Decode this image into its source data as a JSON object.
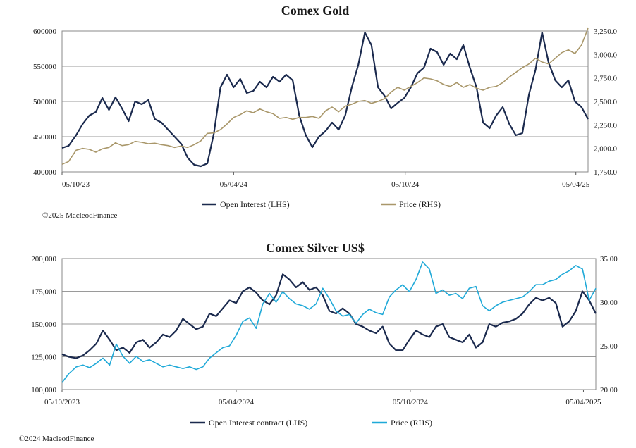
{
  "chart_data": [
    {
      "type": "line",
      "title": "Comex Gold",
      "credit": "©2025 MacleodFinance",
      "x_ticks": [
        "05/10/23",
        "05/04/24",
        "05/10/24",
        "05/04/25"
      ],
      "left_axis": {
        "ylim": [
          400000,
          600000
        ],
        "ticks": [
          "400000",
          "450000",
          "500000",
          "550000",
          "600000"
        ]
      },
      "right_axis": {
        "ylim": [
          1750,
          3250
        ],
        "ticks": [
          "1,750.0",
          "2,000.0",
          "2,250.0",
          "2,500.0",
          "2,750.0",
          "3,000.0",
          "3,250.0"
        ]
      },
      "grid": true,
      "legend_position": "bottom",
      "series": [
        {
          "name": "Open Interest (LHS)",
          "axis": "left",
          "color": "#1b2a4e",
          "x": [
            "2023-10-05",
            "2023-10-12",
            "2023-10-20",
            "2023-10-27",
            "2023-11-03",
            "2023-11-10",
            "2023-11-17",
            "2023-11-24",
            "2023-12-01",
            "2023-12-08",
            "2023-12-15",
            "2023-12-22",
            "2023-12-29",
            "2024-01-05",
            "2024-01-12",
            "2024-01-19",
            "2024-01-26",
            "2024-02-02",
            "2024-02-09",
            "2024-02-16",
            "2024-02-23",
            "2024-03-01",
            "2024-03-08",
            "2024-03-15",
            "2024-03-22",
            "2024-03-29",
            "2024-04-05",
            "2024-04-12",
            "2024-04-19",
            "2024-04-26",
            "2024-05-03",
            "2024-05-10",
            "2024-05-17",
            "2024-05-24",
            "2024-05-31",
            "2024-06-07",
            "2024-06-14",
            "2024-06-21",
            "2024-06-28",
            "2024-07-05",
            "2024-07-12",
            "2024-07-19",
            "2024-07-26",
            "2024-08-02",
            "2024-08-09",
            "2024-08-16",
            "2024-08-23",
            "2024-08-30",
            "2024-09-06",
            "2024-09-13",
            "2024-09-20",
            "2024-09-27",
            "2024-10-04",
            "2024-10-11",
            "2024-10-18",
            "2024-10-25",
            "2024-11-01",
            "2024-11-08",
            "2024-11-15",
            "2024-11-22",
            "2024-11-29",
            "2024-12-06",
            "2024-12-13",
            "2024-12-20",
            "2024-12-27",
            "2025-01-03",
            "2025-01-10",
            "2025-01-17",
            "2025-01-24",
            "2025-01-31",
            "2025-02-07",
            "2025-02-14",
            "2025-02-21",
            "2025-02-28",
            "2025-03-07",
            "2025-03-14",
            "2025-03-21",
            "2025-03-28",
            "2025-04-04",
            "2025-04-11",
            "2025-04-18"
          ],
          "values": [
            434000,
            437000,
            452000,
            468000,
            480000,
            485000,
            505000,
            488000,
            506000,
            490000,
            472000,
            500000,
            496000,
            502000,
            475000,
            470000,
            460000,
            450000,
            440000,
            420000,
            410000,
            408000,
            412000,
            455000,
            520000,
            538000,
            520000,
            532000,
            512000,
            515000,
            528000,
            520000,
            535000,
            528000,
            538000,
            530000,
            480000,
            452000,
            435000,
            450000,
            458000,
            470000,
            460000,
            480000,
            520000,
            552000,
            598000,
            580000,
            520000,
            508000,
            490000,
            498000,
            505000,
            520000,
            540000,
            548000,
            575000,
            570000,
            552000,
            568000,
            560000,
            580000,
            548000,
            520000,
            470000,
            462000,
            480000,
            492000,
            468000,
            452000,
            455000,
            510000,
            545000,
            598000,
            555000,
            530000,
            520000,
            530000,
            500000,
            492000,
            475000
          ]
        },
        {
          "name": "Price (RHS)",
          "axis": "right",
          "color": "#a9976a",
          "x": [
            "2023-10-05",
            "2023-10-12",
            "2023-10-20",
            "2023-10-27",
            "2023-11-03",
            "2023-11-10",
            "2023-11-17",
            "2023-11-24",
            "2023-12-01",
            "2023-12-08",
            "2023-12-15",
            "2023-12-22",
            "2023-12-29",
            "2024-01-05",
            "2024-01-12",
            "2024-01-19",
            "2024-01-26",
            "2024-02-02",
            "2024-02-09",
            "2024-02-16",
            "2024-02-23",
            "2024-03-01",
            "2024-03-08",
            "2024-03-15",
            "2024-03-22",
            "2024-03-29",
            "2024-04-05",
            "2024-04-12",
            "2024-04-19",
            "2024-04-26",
            "2024-05-03",
            "2024-05-10",
            "2024-05-17",
            "2024-05-24",
            "2024-05-31",
            "2024-06-07",
            "2024-06-14",
            "2024-06-21",
            "2024-06-28",
            "2024-07-05",
            "2024-07-12",
            "2024-07-19",
            "2024-07-26",
            "2024-08-02",
            "2024-08-09",
            "2024-08-16",
            "2024-08-23",
            "2024-08-30",
            "2024-09-06",
            "2024-09-13",
            "2024-09-20",
            "2024-09-27",
            "2024-10-04",
            "2024-10-11",
            "2024-10-18",
            "2024-10-25",
            "2024-11-01",
            "2024-11-08",
            "2024-11-15",
            "2024-11-22",
            "2024-11-29",
            "2024-12-06",
            "2024-12-13",
            "2024-12-20",
            "2024-12-27",
            "2025-01-03",
            "2025-01-10",
            "2025-01-17",
            "2025-01-24",
            "2025-01-31",
            "2025-02-07",
            "2025-02-14",
            "2025-02-21",
            "2025-02-28",
            "2025-03-07",
            "2025-03-14",
            "2025-03-21",
            "2025-03-28",
            "2025-04-04",
            "2025-04-11",
            "2025-04-18"
          ],
          "values": [
            1830,
            1860,
            1980,
            2000,
            1990,
            1960,
            1995,
            2010,
            2060,
            2030,
            2040,
            2075,
            2065,
            2050,
            2055,
            2040,
            2030,
            2010,
            2025,
            2010,
            2040,
            2080,
            2160,
            2165,
            2200,
            2260,
            2330,
            2360,
            2400,
            2380,
            2420,
            2390,
            2370,
            2320,
            2330,
            2310,
            2330,
            2330,
            2340,
            2320,
            2400,
            2440,
            2390,
            2450,
            2470,
            2500,
            2510,
            2480,
            2500,
            2530,
            2600,
            2650,
            2620,
            2660,
            2700,
            2750,
            2740,
            2720,
            2680,
            2660,
            2700,
            2650,
            2680,
            2640,
            2620,
            2650,
            2660,
            2700,
            2760,
            2810,
            2860,
            2900,
            2960,
            2920,
            2900,
            2960,
            3020,
            3050,
            3010,
            3100,
            3280
          ]
        }
      ]
    },
    {
      "type": "line",
      "title": "Comex Silver US$",
      "credit": "©2024 MacleodFinance",
      "x_ticks": [
        "05/10/2023",
        "05/04/2024",
        "05/10/2024",
        "05/04/2025"
      ],
      "left_axis": {
        "ylim": [
          100000,
          200000
        ],
        "ticks": [
          "100,000",
          "125,000",
          "150,000",
          "175,000",
          "200,000"
        ]
      },
      "right_axis": {
        "ylim": [
          20,
          35
        ],
        "ticks": [
          "20.00",
          "25.00",
          "30.00",
          "35.00"
        ]
      },
      "grid": true,
      "legend_position": "bottom",
      "series": [
        {
          "name": "Open Interest contract (LHS)",
          "axis": "left",
          "color": "#1b2a4e",
          "x": [
            "2023-10-05",
            "2023-10-12",
            "2023-10-20",
            "2023-10-27",
            "2023-11-03",
            "2023-11-10",
            "2023-11-17",
            "2023-11-24",
            "2023-12-01",
            "2023-12-08",
            "2023-12-15",
            "2023-12-22",
            "2023-12-29",
            "2024-01-05",
            "2024-01-12",
            "2024-01-19",
            "2024-01-26",
            "2024-02-02",
            "2024-02-09",
            "2024-02-16",
            "2024-02-23",
            "2024-03-01",
            "2024-03-08",
            "2024-03-15",
            "2024-03-22",
            "2024-03-29",
            "2024-04-05",
            "2024-04-12",
            "2024-04-19",
            "2024-04-26",
            "2024-05-03",
            "2024-05-10",
            "2024-05-17",
            "2024-05-24",
            "2024-05-31",
            "2024-06-07",
            "2024-06-14",
            "2024-06-21",
            "2024-06-28",
            "2024-07-05",
            "2024-07-12",
            "2024-07-19",
            "2024-07-26",
            "2024-08-02",
            "2024-08-09",
            "2024-08-16",
            "2024-08-23",
            "2024-08-30",
            "2024-09-06",
            "2024-09-13",
            "2024-09-20",
            "2024-09-27",
            "2024-10-04",
            "2024-10-11",
            "2024-10-18",
            "2024-10-25",
            "2024-11-01",
            "2024-11-08",
            "2024-11-15",
            "2024-11-22",
            "2024-11-29",
            "2024-12-06",
            "2024-12-13",
            "2024-12-20",
            "2024-12-27",
            "2025-01-03",
            "2025-01-10",
            "2025-01-17",
            "2025-01-24",
            "2025-01-31",
            "2025-02-07",
            "2025-02-14",
            "2025-02-21",
            "2025-02-28",
            "2025-03-07",
            "2025-03-14",
            "2025-03-21",
            "2025-03-28",
            "2025-04-04",
            "2025-04-11",
            "2025-04-18"
          ],
          "values": [
            127000,
            125000,
            124000,
            126000,
            130000,
            135000,
            145000,
            138000,
            130000,
            132000,
            128000,
            136000,
            138000,
            132000,
            136000,
            142000,
            140000,
            145000,
            154000,
            150000,
            146000,
            148000,
            158000,
            156000,
            162000,
            168000,
            166000,
            175000,
            178000,
            174000,
            168000,
            165000,
            172000,
            188000,
            184000,
            178000,
            182000,
            176000,
            178000,
            172000,
            160000,
            158000,
            162000,
            158000,
            150000,
            148000,
            145000,
            143000,
            148000,
            135000,
            130000,
            130000,
            138000,
            145000,
            142000,
            140000,
            148000,
            150000,
            140000,
            138000,
            136000,
            142000,
            132000,
            136000,
            150000,
            148000,
            151000,
            152000,
            154000,
            158000,
            165000,
            170000,
            168000,
            170000,
            166000,
            148000,
            152000,
            160000,
            175000,
            168000,
            158000
          ]
        },
        {
          "name": "Price (RHS)",
          "axis": "right",
          "color": "#1fa9d8",
          "x": [
            "2023-10-05",
            "2023-10-12",
            "2023-10-20",
            "2023-10-27",
            "2023-11-03",
            "2023-11-10",
            "2023-11-17",
            "2023-11-24",
            "2023-12-01",
            "2023-12-08",
            "2023-12-15",
            "2023-12-22",
            "2023-12-29",
            "2024-01-05",
            "2024-01-12",
            "2024-01-19",
            "2024-01-26",
            "2024-02-02",
            "2024-02-09",
            "2024-02-16",
            "2024-02-23",
            "2024-03-01",
            "2024-03-08",
            "2024-03-15",
            "2024-03-22",
            "2024-03-29",
            "2024-04-05",
            "2024-04-12",
            "2024-04-19",
            "2024-04-26",
            "2024-05-03",
            "2024-05-10",
            "2024-05-17",
            "2024-05-24",
            "2024-05-31",
            "2024-06-07",
            "2024-06-14",
            "2024-06-21",
            "2024-06-28",
            "2024-07-05",
            "2024-07-12",
            "2024-07-19",
            "2024-07-26",
            "2024-08-02",
            "2024-08-09",
            "2024-08-16",
            "2024-08-23",
            "2024-08-30",
            "2024-09-06",
            "2024-09-13",
            "2024-09-20",
            "2024-09-27",
            "2024-10-04",
            "2024-10-11",
            "2024-10-18",
            "2024-10-25",
            "2024-11-01",
            "2024-11-08",
            "2024-11-15",
            "2024-11-22",
            "2024-11-29",
            "2024-12-06",
            "2024-12-13",
            "2024-12-20",
            "2024-12-27",
            "2025-01-03",
            "2025-01-10",
            "2025-01-17",
            "2025-01-24",
            "2025-01-31",
            "2025-02-07",
            "2025-02-14",
            "2025-02-21",
            "2025-02-28",
            "2025-03-07",
            "2025-03-14",
            "2025-03-21",
            "2025-03-28",
            "2025-04-04",
            "2025-04-11",
            "2025-04-18"
          ],
          "values": [
            20.8,
            21.8,
            22.6,
            22.8,
            22.5,
            23.0,
            23.6,
            22.8,
            25.2,
            23.8,
            23.0,
            23.8,
            23.2,
            23.4,
            23.0,
            22.6,
            22.8,
            22.6,
            22.4,
            22.6,
            22.3,
            22.6,
            23.6,
            24.2,
            24.8,
            25.0,
            26.2,
            27.8,
            28.2,
            27.0,
            29.8,
            31.0,
            30.0,
            31.2,
            30.4,
            29.8,
            29.6,
            29.2,
            29.8,
            31.6,
            30.4,
            29.0,
            28.4,
            28.6,
            27.6,
            28.6,
            29.2,
            28.8,
            28.6,
            30.6,
            31.4,
            32.0,
            31.2,
            32.6,
            34.6,
            33.8,
            31.0,
            31.4,
            30.8,
            31.0,
            30.4,
            31.6,
            31.8,
            29.6,
            29.0,
            29.6,
            30.0,
            30.2,
            30.4,
            30.6,
            31.2,
            32.0,
            32.0,
            32.4,
            32.6,
            33.2,
            33.6,
            34.2,
            33.8,
            30.2,
            31.6
          ]
        }
      ]
    }
  ]
}
